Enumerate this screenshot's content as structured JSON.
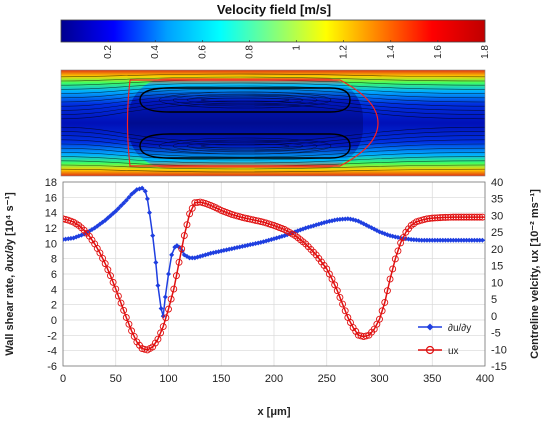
{
  "chart_data": [
    {
      "type": "colorbar",
      "title": "Velocity field [m/s]",
      "range": [
        0,
        1.8
      ],
      "ticks": [
        "0.2",
        "0.4",
        "0.6",
        "0.8",
        "1",
        "1.2",
        "1.4",
        "1.6",
        "1.8"
      ],
      "tick_values": [
        0.2,
        0.4,
        0.6,
        0.8,
        1.0,
        1.2,
        1.4,
        1.6,
        1.8
      ],
      "colormap": [
        "#00008f",
        "#0000ff",
        "#00a0ff",
        "#00ffff",
        "#80ff80",
        "#ffff00",
        "#ff8000",
        "#ff0000",
        "#c00000"
      ]
    },
    {
      "type": "heatmap",
      "description_colors": {
        "wall_band": "#e04010",
        "near_wall": "#60ff40",
        "core": "#0010c0",
        "streamline": "#000000",
        "bubble_outline": "#ff0000"
      }
    },
    {
      "type": "line",
      "xlabel": "x [μm]",
      "ylabel": "Wall shear rate, ∂ux/∂y [10⁴ s⁻¹]",
      "ylabel_right": "Centreline velcity, ux [10⁻² ms⁻¹]",
      "xlim": [
        0,
        400
      ],
      "ylim": [
        -6,
        18
      ],
      "ylim_right": [
        -15,
        40
      ],
      "x_ticks": [
        "0",
        "50",
        "100",
        "150",
        "200",
        "250",
        "300",
        "350",
        "400"
      ],
      "y_ticks": [
        "-6",
        "-4",
        "-2",
        "0",
        "2",
        "4",
        "6",
        "8",
        "10",
        "12",
        "14",
        "16",
        "18"
      ],
      "y_ticks_right": [
        "-15",
        "-10",
        "-5",
        "0",
        "5",
        "10",
        "15",
        "20",
        "25",
        "30",
        "35",
        "40"
      ],
      "grid": true,
      "legend_position": "bottom-right",
      "series": [
        {
          "name": "∂u/∂y",
          "axis": "left",
          "color": "#1f3fe0",
          "marker": "diamond",
          "x": [
            0,
            10,
            20,
            30,
            40,
            50,
            60,
            65,
            70,
            75,
            78,
            80,
            82,
            85,
            88,
            90,
            93,
            95,
            97,
            100,
            103,
            106,
            108,
            110,
            113,
            115,
            120,
            125,
            130,
            140,
            150,
            160,
            170,
            180,
            190,
            200,
            210,
            220,
            230,
            240,
            250,
            260,
            270,
            275,
            280,
            290,
            300,
            310,
            320,
            330,
            340,
            350,
            360,
            370,
            380,
            390,
            400
          ],
          "y": [
            10.5,
            10.7,
            11.2,
            12.0,
            13.0,
            14.2,
            15.6,
            16.4,
            17.0,
            17.2,
            16.8,
            15.8,
            14.0,
            11.0,
            7.5,
            4.5,
            1.5,
            0.5,
            3.0,
            6.0,
            8.5,
            9.5,
            9.7,
            9.5,
            9.0,
            8.5,
            8.1,
            8.1,
            8.3,
            8.7,
            9.0,
            9.3,
            9.6,
            9.9,
            10.2,
            10.6,
            11.0,
            11.5,
            12.0,
            12.4,
            12.8,
            13.1,
            13.2,
            13.1,
            12.9,
            12.2,
            11.5,
            11.0,
            10.7,
            10.5,
            10.4,
            10.4,
            10.4,
            10.4,
            10.4,
            10.4,
            10.4
          ]
        },
        {
          "name": "ux",
          "axis": "right",
          "color": "#e01010",
          "marker": "circle",
          "x": [
            0,
            5,
            10,
            15,
            20,
            25,
            30,
            35,
            40,
            45,
            50,
            55,
            60,
            65,
            70,
            75,
            80,
            85,
            90,
            95,
            100,
            105,
            110,
            115,
            120,
            125,
            130,
            135,
            140,
            145,
            150,
            160,
            170,
            180,
            190,
            200,
            210,
            220,
            230,
            240,
            250,
            255,
            260,
            265,
            270,
            275,
            280,
            285,
            290,
            295,
            300,
            305,
            310,
            315,
            320,
            325,
            330,
            335,
            340,
            345,
            350,
            360,
            370,
            380,
            390,
            400
          ],
          "y": [
            29.0,
            28.6,
            28.0,
            27.0,
            25.6,
            23.8,
            21.5,
            18.8,
            15.6,
            12.0,
            8.0,
            3.8,
            -0.5,
            -4.5,
            -7.8,
            -9.8,
            -10.2,
            -9.3,
            -7.0,
            -3.2,
            2.0,
            8.0,
            16.0,
            24.0,
            30.5,
            33.8,
            34.0,
            33.6,
            33.0,
            32.3,
            31.5,
            30.3,
            29.4,
            28.7,
            28.0,
            27.0,
            25.8,
            24.0,
            21.5,
            18.2,
            14.0,
            11.0,
            7.5,
            3.5,
            -0.5,
            -3.5,
            -5.8,
            -6.2,
            -5.8,
            -4.0,
            -1.0,
            4.0,
            11.0,
            17.0,
            21.8,
            25.0,
            27.0,
            28.1,
            28.6,
            29.0,
            29.2,
            29.4,
            29.5,
            29.5,
            29.5,
            29.5
          ]
        }
      ]
    }
  ]
}
